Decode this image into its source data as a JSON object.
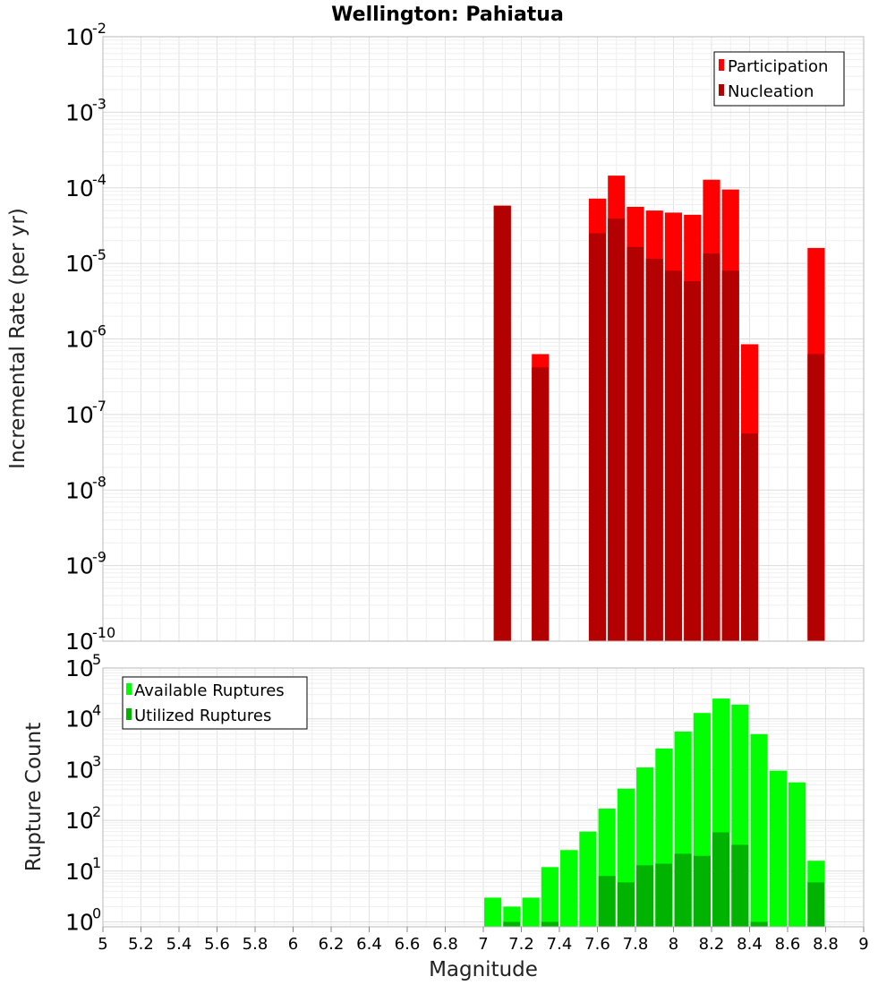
{
  "chart_data": [
    {
      "type": "bar",
      "title": "Wellington: Pahiatua",
      "xlabel": "",
      "ylabel": "Incremental Rate (per yr)",
      "yscale": "log",
      "xlim": [
        5,
        9
      ],
      "ylim": [
        1e-10,
        0.01
      ],
      "grid": true,
      "legend_position": "top-right",
      "bar_width": 0.09,
      "series": [
        {
          "name": "Participation",
          "color": "#ff0000",
          "x": [
            7.1,
            7.3,
            7.6,
            7.7,
            7.8,
            7.9,
            8.0,
            8.1,
            8.2,
            8.3,
            8.4,
            8.75
          ],
          "values": [
            5.8e-05,
            6.3e-07,
            7.2e-05,
            0.000145,
            5.6e-05,
            5e-05,
            4.7e-05,
            4.4e-05,
            0.000128,
            9.5e-05,
            8.5e-07,
            1.6e-05
          ]
        },
        {
          "name": "Nucleation",
          "color": "#b30000",
          "x": [
            7.1,
            7.3,
            7.6,
            7.7,
            7.8,
            7.9,
            8.0,
            8.1,
            8.2,
            8.3,
            8.4,
            8.75
          ],
          "values": [
            5.8e-05,
            4.2e-07,
            2.5e-05,
            3.9e-05,
            1.65e-05,
            1.15e-05,
            8e-06,
            5.8e-06,
            1.35e-05,
            8e-06,
            5.6e-08,
            6.3e-07
          ]
        }
      ]
    },
    {
      "type": "bar",
      "title": "",
      "xlabel": "Magnitude",
      "ylabel": "Rupture Count",
      "yscale": "log",
      "xlim": [
        5,
        9
      ],
      "ylim": [
        0.8,
        100000.0
      ],
      "grid": true,
      "legend_position": "top-left",
      "bar_width": 0.09,
      "series": [
        {
          "name": "Available Ruptures",
          "color": "#00ff00",
          "x": [
            7.05,
            7.15,
            7.25,
            7.35,
            7.45,
            7.55,
            7.65,
            7.75,
            7.85,
            7.95,
            8.05,
            8.15,
            8.25,
            8.35,
            8.45,
            8.55,
            8.65,
            8.75
          ],
          "values": [
            3,
            2,
            3,
            12,
            26,
            60,
            170,
            420,
            1100,
            2600,
            5600,
            13000,
            25000,
            19000,
            5000,
            950,
            560,
            16
          ]
        },
        {
          "name": "Utilized Ruptures",
          "color": "#00b300",
          "x": [
            7.15,
            7.35,
            7.65,
            7.75,
            7.85,
            7.95,
            8.05,
            8.15,
            8.25,
            8.35,
            8.45,
            8.75
          ],
          "values": [
            1,
            1,
            8,
            6,
            13,
            14,
            22,
            20,
            58,
            33,
            1,
            6
          ]
        }
      ],
      "x_ticks": [
        "5",
        "5.2",
        "5.4",
        "5.6",
        "5.8",
        "6",
        "6.2",
        "6.4",
        "6.6",
        "6.8",
        "7",
        "7.2",
        "7.4",
        "7.6",
        "7.8",
        "8",
        "8.2",
        "8.4",
        "8.6",
        "8.8",
        "9"
      ]
    }
  ]
}
